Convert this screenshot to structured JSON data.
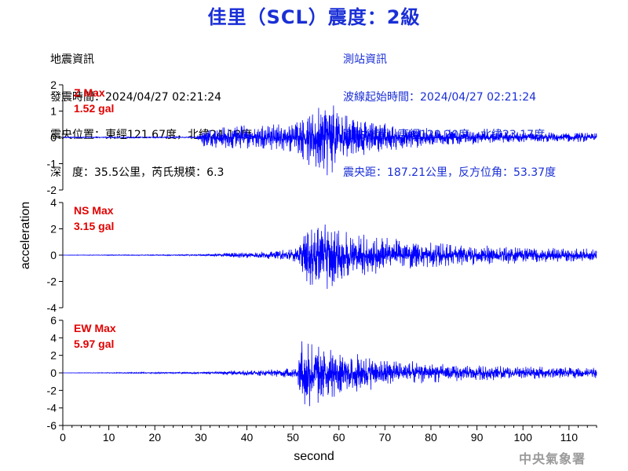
{
  "title": "佳里（SCL）震度：2級",
  "event_info": {
    "heading": "地震資訊",
    "time": "發震時間：2024/04/27 02:21:24",
    "location": "震央位置：東經121.67度，北緯24.18度",
    "depth_magnitude": "深　度：35.5公里，芮氏規模：6.3"
  },
  "station_info": {
    "heading": "測站資訊",
    "onset": "波線起始時間：2024/04/27 02:21:24",
    "location": "測站位置：東經120.20度，北緯23.17度",
    "distance": "震央距：187.21公里，反方位角：53.37度"
  },
  "credit": "中央氣象署",
  "colors": {
    "trace": "#0000ff",
    "label": "#e00000",
    "title": "#1a2fd6",
    "axis": "#000000"
  },
  "chart_data": [
    {
      "type": "line",
      "component": "Z",
      "max_label": "Z Max",
      "max_value": "1.52 gal",
      "peak": 1.52,
      "ylim": [
        -2,
        2
      ],
      "yticks": [
        "-2",
        "-1",
        "0",
        "1",
        "2"
      ],
      "xlim": [
        0,
        116
      ],
      "envelope": [
        [
          0,
          0.02
        ],
        [
          29,
          0.02
        ],
        [
          30,
          0.35
        ],
        [
          32,
          0.4
        ],
        [
          40,
          0.5
        ],
        [
          50,
          0.55
        ],
        [
          55,
          1.4
        ],
        [
          58,
          1.52
        ],
        [
          62,
          0.9
        ],
        [
          68,
          0.6
        ],
        [
          80,
          0.35
        ],
        [
          95,
          0.22
        ],
        [
          116,
          0.18
        ]
      ]
    },
    {
      "type": "line",
      "component": "NS",
      "max_label": "NS Max",
      "max_value": "3.15 gal",
      "peak": 3.15,
      "ylim": [
        -4,
        4
      ],
      "yticks": [
        "-4",
        "-2",
        "0",
        "2",
        "4"
      ],
      "xlim": [
        0,
        116
      ],
      "envelope": [
        [
          0,
          0.01
        ],
        [
          30,
          0.05
        ],
        [
          35,
          0.18
        ],
        [
          45,
          0.3
        ],
        [
          51,
          0.6
        ],
        [
          53,
          2.2
        ],
        [
          55,
          3.15
        ],
        [
          58,
          2.5
        ],
        [
          65,
          1.7
        ],
        [
          75,
          1.1
        ],
        [
          90,
          0.75
        ],
        [
          116,
          0.5
        ]
      ]
    },
    {
      "type": "line",
      "component": "EW",
      "max_label": "EW Max",
      "max_value": "5.97 gal",
      "peak": 5.97,
      "ylim": [
        -6,
        6
      ],
      "yticks": [
        "-6",
        "-4",
        "-2",
        "0",
        "2",
        "4",
        "6"
      ],
      "xlim": [
        0,
        116
      ],
      "envelope": [
        [
          0,
          0.01
        ],
        [
          30,
          0.1
        ],
        [
          35,
          0.25
        ],
        [
          45,
          0.4
        ],
        [
          51,
          0.7
        ],
        [
          52,
          5.97
        ],
        [
          54,
          4.5
        ],
        [
          57,
          3.2
        ],
        [
          62,
          2.4
        ],
        [
          72,
          1.5
        ],
        [
          85,
          1.0
        ],
        [
          100,
          0.75
        ],
        [
          116,
          0.6
        ]
      ]
    }
  ],
  "x_axis": {
    "label": "second",
    "ticks": [
      "0",
      "10",
      "20",
      "30",
      "40",
      "50",
      "60",
      "70",
      "80",
      "90",
      "100",
      "110"
    ],
    "tick_values": [
      0,
      10,
      20,
      30,
      40,
      50,
      60,
      70,
      80,
      90,
      100,
      110
    ]
  },
  "y_axis_label": "acceleration"
}
